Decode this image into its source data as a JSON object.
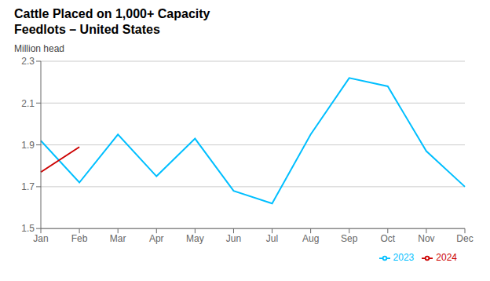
{
  "chart_data": {
    "type": "line",
    "title": "Cattle Placed on 1,000+ Capacity\nFeedlots – United States",
    "y_label": "Million head",
    "categories": [
      "Jan",
      "Feb",
      "Mar",
      "Apr",
      "May",
      "Jun",
      "Jul",
      "Aug",
      "Sep",
      "Oct",
      "Nov",
      "Dec"
    ],
    "series": [
      {
        "name": "2023",
        "color": "#00bfff",
        "values": [
          1.92,
          1.72,
          1.95,
          1.75,
          1.93,
          1.68,
          1.62,
          1.95,
          2.22,
          2.18,
          1.87,
          1.7
        ]
      },
      {
        "name": "2024",
        "color": "#cc0000",
        "values": [
          1.77,
          1.89,
          null,
          null,
          null,
          null,
          null,
          null,
          null,
          null,
          null,
          null
        ]
      }
    ],
    "ylim": [
      1.5,
      2.3
    ],
    "yticks": [
      1.5,
      1.7,
      1.9,
      2.1,
      2.3
    ],
    "grid": true,
    "legend": "lower right"
  }
}
